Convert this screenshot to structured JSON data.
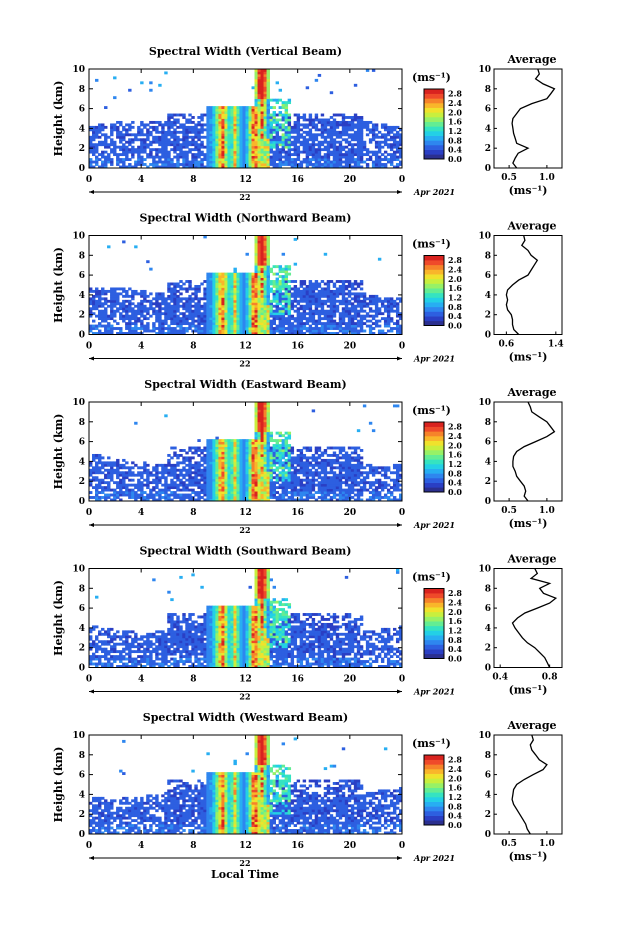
{
  "footer_label": "Local Time",
  "date_label": "Apr 2021",
  "day_label": "22",
  "units_label": "(ms⁻¹)",
  "avg_title": "Average",
  "avg_xlabel": "(ms⁻¹)",
  "ylabel": "Height (km)",
  "colormap": [
    "#2b2f8f",
    "#2a3fc4",
    "#2d5fe0",
    "#2e86ef",
    "#27aef2",
    "#23d0e6",
    "#35e3c1",
    "#63ed93",
    "#97f166",
    "#c8ef3e",
    "#f0e22c",
    "#f9b62a",
    "#f6832a",
    "#ef4a2a",
    "#d9231f"
  ],
  "chart_data": [
    {
      "type": "heatmap",
      "title": "Spectral Width (Vertical Beam)",
      "xlabel": "Local Time",
      "ylabel": "Height (km)",
      "x_ticks": [
        "0",
        "4",
        "8",
        "12",
        "16",
        "20",
        "0"
      ],
      "xlim": [
        0,
        24
      ],
      "y_ticks": [
        "0",
        "2",
        "4",
        "6",
        "8",
        "10"
      ],
      "ylim": [
        0,
        10
      ],
      "colorbar_ticks": [
        "0.0",
        "0.4",
        "0.8",
        "1.2",
        "1.6",
        "2.0",
        "2.4",
        "2.8"
      ],
      "colorbar_range": [
        0.0,
        3.0
      ],
      "units": "(ms⁻¹)",
      "average": {
        "title": "Average",
        "xlabel": "(ms⁻¹)",
        "x_ticks": [
          "0.5",
          "1.0"
        ],
        "xlim": [
          0.3,
          1.2
        ],
        "height_km": [
          0,
          0.5,
          1,
          1.5,
          2,
          2.5,
          3,
          3.5,
          4,
          4.5,
          5,
          5.5,
          6,
          6.5,
          7,
          7.5,
          8,
          8.5,
          9,
          9.5,
          10
        ],
        "value": [
          0.6,
          0.55,
          0.58,
          0.62,
          0.75,
          0.6,
          0.58,
          0.56,
          0.55,
          0.54,
          0.55,
          0.6,
          0.65,
          0.8,
          1.0,
          1.05,
          1.1,
          0.95,
          0.85,
          0.9,
          0.88
        ]
      },
      "date": "Apr 2021",
      "day": "22"
    },
    {
      "type": "heatmap",
      "title": "Spectral Width (Northward Beam)",
      "xlabel": "Local Time",
      "ylabel": "Height (km)",
      "x_ticks": [
        "0",
        "4",
        "8",
        "12",
        "16",
        "20",
        "0"
      ],
      "xlim": [
        0,
        24
      ],
      "y_ticks": [
        "0",
        "2",
        "4",
        "6",
        "8",
        "10"
      ],
      "ylim": [
        0,
        10
      ],
      "colorbar_ticks": [
        "0.0",
        "0.4",
        "0.8",
        "1.2",
        "1.6",
        "2.0",
        "2.4",
        "2.8"
      ],
      "colorbar_range": [
        0.0,
        3.0
      ],
      "units": "(ms⁻¹)",
      "average": {
        "title": "Average",
        "xlabel": "(ms⁻¹)",
        "x_ticks": [
          "0.6",
          "1.4"
        ],
        "xlim": [
          0.4,
          1.5
        ],
        "height_km": [
          0,
          0.5,
          1,
          1.5,
          2,
          2.5,
          3,
          3.5,
          4,
          4.5,
          5,
          5.5,
          6,
          6.5,
          7,
          7.5,
          8,
          8.5,
          9,
          9.5,
          10
        ],
        "value": [
          0.8,
          0.72,
          0.7,
          0.7,
          0.68,
          0.62,
          0.6,
          0.62,
          0.6,
          0.62,
          0.7,
          0.8,
          0.95,
          1.0,
          1.05,
          1.1,
          1.0,
          0.95,
          0.85,
          0.9,
          0.88
        ]
      },
      "date": "Apr 2021",
      "day": "22"
    },
    {
      "type": "heatmap",
      "title": "Spectral Width (Eastward Beam)",
      "xlabel": "Local Time",
      "ylabel": "Height (km)",
      "x_ticks": [
        "0",
        "4",
        "8",
        "12",
        "16",
        "20",
        "0"
      ],
      "xlim": [
        0,
        24
      ],
      "y_ticks": [
        "0",
        "2",
        "4",
        "6",
        "8",
        "10"
      ],
      "ylim": [
        0,
        10
      ],
      "colorbar_ticks": [
        "0.0",
        "0.4",
        "0.8",
        "1.2",
        "1.6",
        "2.0",
        "2.4",
        "2.8"
      ],
      "colorbar_range": [
        0.0,
        3.0
      ],
      "units": "(ms⁻¹)",
      "average": {
        "title": "Average",
        "xlabel": "(ms⁻¹)",
        "x_ticks": [
          "0.5",
          "1.0"
        ],
        "xlim": [
          0.3,
          1.2
        ],
        "height_km": [
          0,
          0.5,
          1,
          1.5,
          2,
          2.5,
          3,
          3.5,
          4,
          4.5,
          5,
          5.5,
          6,
          6.5,
          7,
          7.5,
          8,
          8.5,
          9,
          9.5,
          10
        ],
        "value": [
          0.75,
          0.7,
          0.72,
          0.7,
          0.65,
          0.6,
          0.58,
          0.55,
          0.55,
          0.56,
          0.6,
          0.7,
          0.85,
          1.0,
          1.1,
          1.05,
          1.0,
          0.9,
          0.8,
          0.78,
          0.75
        ]
      },
      "date": "Apr 2021",
      "day": "22"
    },
    {
      "type": "heatmap",
      "title": "Spectral Width (Southward Beam)",
      "xlabel": "Local Time",
      "ylabel": "Height (km)",
      "x_ticks": [
        "0",
        "4",
        "8",
        "12",
        "16",
        "20",
        "0"
      ],
      "xlim": [
        0,
        24
      ],
      "y_ticks": [
        "0",
        "2",
        "4",
        "6",
        "8",
        "10"
      ],
      "ylim": [
        0,
        10
      ],
      "colorbar_ticks": [
        "0.0",
        "0.4",
        "0.8",
        "1.2",
        "1.6",
        "2.0",
        "2.4",
        "2.8"
      ],
      "colorbar_range": [
        0.0,
        3.0
      ],
      "units": "(ms⁻¹)",
      "average": {
        "title": "Average",
        "xlabel": "(ms⁻¹)",
        "x_ticks": [
          "0.4",
          "0.8"
        ],
        "xlim": [
          0.35,
          0.9
        ],
        "height_km": [
          0,
          0.5,
          1,
          1.5,
          2,
          2.5,
          3,
          3.5,
          4,
          4.5,
          5,
          5.5,
          6,
          6.5,
          7,
          7.5,
          8,
          8.5,
          9,
          9.5,
          10
        ],
        "value": [
          0.8,
          0.78,
          0.76,
          0.72,
          0.68,
          0.62,
          0.58,
          0.55,
          0.52,
          0.5,
          0.54,
          0.6,
          0.7,
          0.8,
          0.85,
          0.75,
          0.72,
          0.8,
          0.65,
          0.7,
          0.68
        ]
      },
      "date": "Apr 2021",
      "day": "22"
    },
    {
      "type": "heatmap",
      "title": "Spectral Width (Westward Beam)",
      "xlabel": "Local Time",
      "ylabel": "Height (km)",
      "x_ticks": [
        "0",
        "4",
        "8",
        "12",
        "16",
        "20",
        "0"
      ],
      "xlim": [
        0,
        24
      ],
      "y_ticks": [
        "0",
        "2",
        "4",
        "6",
        "8",
        "10"
      ],
      "ylim": [
        0,
        10
      ],
      "colorbar_ticks": [
        "0.0",
        "0.4",
        "0.8",
        "1.2",
        "1.6",
        "2.0",
        "2.4",
        "2.8"
      ],
      "colorbar_range": [
        0.0,
        3.0
      ],
      "units": "(ms⁻¹)",
      "average": {
        "title": "Average",
        "xlabel": "(ms⁻¹)",
        "x_ticks": [
          "0.5",
          "1.0"
        ],
        "xlim": [
          0.3,
          1.2
        ],
        "height_km": [
          0,
          0.5,
          1,
          1.5,
          2,
          2.5,
          3,
          3.5,
          4,
          4.5,
          5,
          5.5,
          6,
          6.5,
          7,
          7.5,
          8,
          8.5,
          9,
          9.5,
          10
        ],
        "value": [
          0.78,
          0.74,
          0.72,
          0.68,
          0.64,
          0.6,
          0.56,
          0.54,
          0.55,
          0.56,
          0.6,
          0.7,
          0.82,
          0.95,
          1.0,
          0.9,
          0.85,
          0.8,
          0.78,
          0.82,
          0.8
        ]
      },
      "date": "Apr 2021",
      "day": "22"
    }
  ]
}
